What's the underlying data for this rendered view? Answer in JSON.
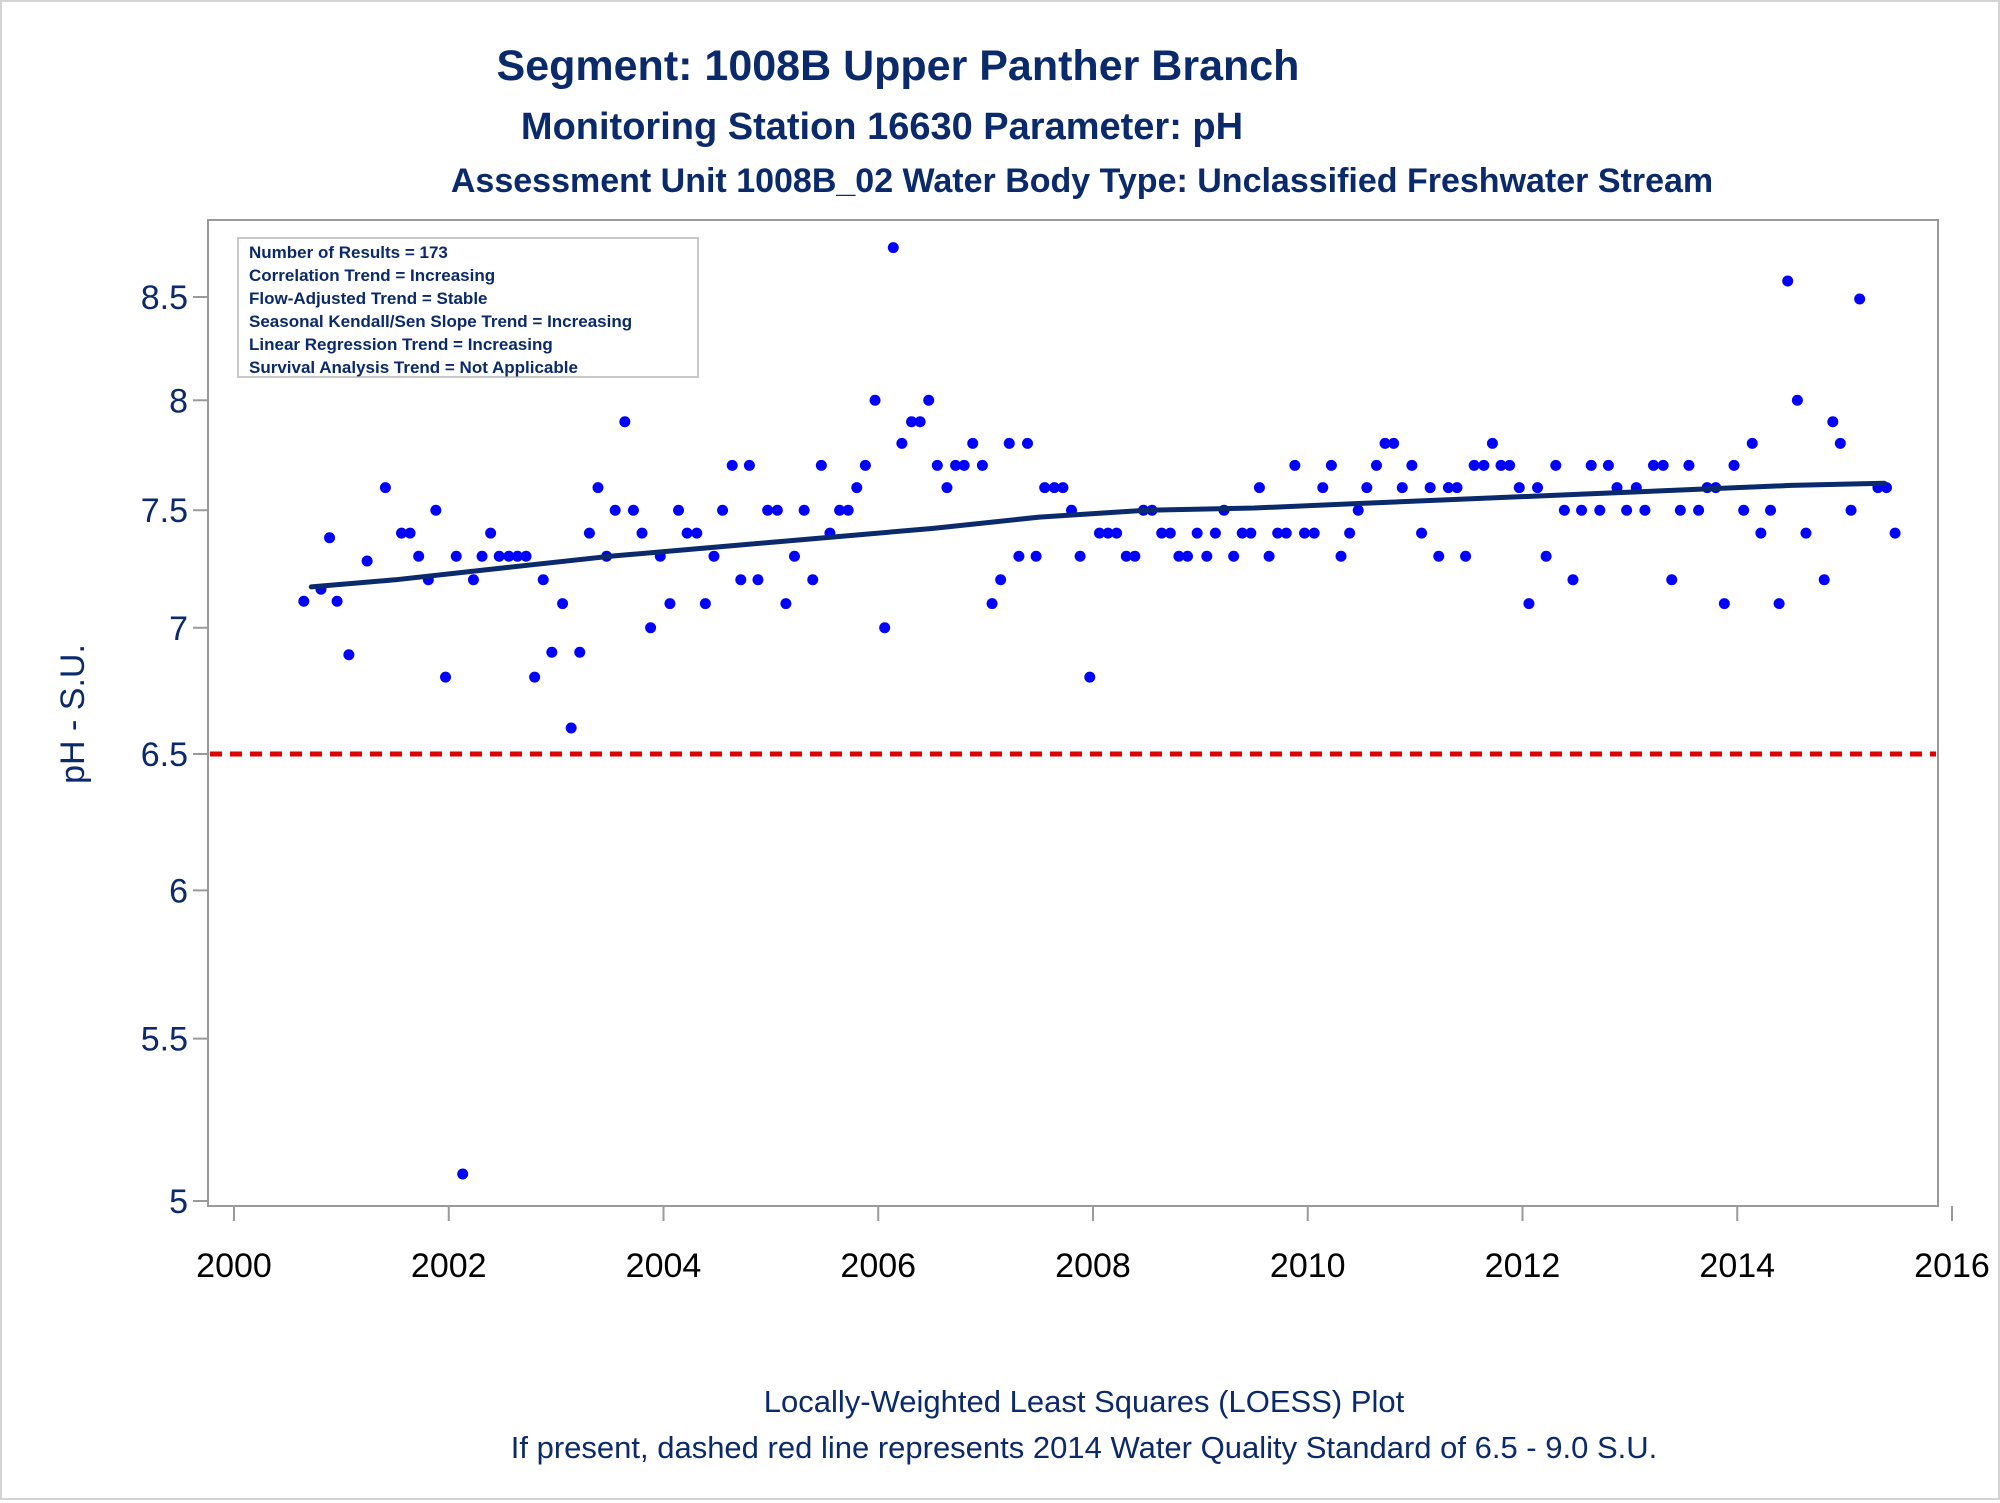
{
  "titles": {
    "line1": "Segment: 1008B  Upper Panther Branch",
    "line2": "Monitoring Station 16630 Parameter: pH",
    "line3": "Assessment Unit 1008B_02   Water Body Type: Unclassified Freshwater Stream"
  },
  "footnotes": {
    "line1": "Locally-Weighted Least Squares (LOESS) Plot",
    "line2": "If present, dashed red line represents 2014 Water Quality Standard of 6.5 - 9.0 S.U."
  },
  "stats_box": [
    "Number of Results = 173",
    "Correlation Trend = Increasing",
    "Flow-Adjusted Trend = Stable",
    "Seasonal Kendall/Sen Slope Trend = Increasing",
    "Linear Regression Trend = Increasing",
    "Survival Analysis Trend = Not Applicable"
  ],
  "colors": {
    "title": "#0b2a6b",
    "points": "#0000ff",
    "loess": "#0b2a6b",
    "standard_line": "#e00000",
    "axis": "#9a9a9a"
  },
  "chart_data": {
    "type": "scatter",
    "xlabel": "",
    "ylabel": "pH - S.U.",
    "xlim": [
      2000,
      2016
    ],
    "ylim": [
      4.96,
      8.78
    ],
    "y_scale": "log",
    "x_ticks": [
      2000,
      2002,
      2004,
      2006,
      2008,
      2010,
      2012,
      2014,
      2016
    ],
    "y_ticks": [
      5,
      5.5,
      6,
      6.5,
      7,
      7.5,
      8,
      8.5
    ],
    "grid": false,
    "reference_line": {
      "y": 6.5,
      "style": "dashed"
    },
    "series": [
      {
        "name": "",
        "type": "scatter",
        "points": [
          [
            2000.65,
            7.11
          ],
          [
            2000.81,
            7.16
          ],
          [
            2000.89,
            7.38
          ],
          [
            2000.96,
            7.11
          ],
          [
            2001.07,
            6.89
          ],
          [
            2001.24,
            7.28
          ],
          [
            2001.41,
            7.6
          ],
          [
            2001.56,
            7.4
          ],
          [
            2001.64,
            7.4
          ],
          [
            2001.72,
            7.3
          ],
          [
            2001.81,
            7.2
          ],
          [
            2001.88,
            7.5
          ],
          [
            2001.97,
            6.8
          ],
          [
            2002.07,
            7.3
          ],
          [
            2002.13,
            5.08
          ],
          [
            2002.23,
            7.2
          ],
          [
            2002.31,
            7.3
          ],
          [
            2002.39,
            7.4
          ],
          [
            2002.47,
            7.3
          ],
          [
            2002.56,
            7.3
          ],
          [
            2002.64,
            7.3
          ],
          [
            2002.72,
            7.3
          ],
          [
            2002.8,
            6.8
          ],
          [
            2002.88,
            7.2
          ],
          [
            2002.96,
            6.9
          ],
          [
            2003.06,
            7.1
          ],
          [
            2003.14,
            6.6
          ],
          [
            2003.22,
            6.9
          ],
          [
            2003.31,
            7.4
          ],
          [
            2003.39,
            7.6
          ],
          [
            2003.47,
            7.3
          ],
          [
            2003.55,
            7.5
          ],
          [
            2003.64,
            7.9
          ],
          [
            2003.72,
            7.5
          ],
          [
            2003.8,
            7.4
          ],
          [
            2003.88,
            7.0
          ],
          [
            2003.97,
            7.3
          ],
          [
            2004.06,
            7.1
          ],
          [
            2004.14,
            7.5
          ],
          [
            2004.22,
            7.4
          ],
          [
            2004.31,
            7.4
          ],
          [
            2004.39,
            7.1
          ],
          [
            2004.47,
            7.3
          ],
          [
            2004.55,
            7.5
          ],
          [
            2004.64,
            7.7
          ],
          [
            2004.72,
            7.2
          ],
          [
            2004.8,
            7.7
          ],
          [
            2004.88,
            7.2
          ],
          [
            2004.97,
            7.5
          ],
          [
            2005.06,
            7.5
          ],
          [
            2005.14,
            7.1
          ],
          [
            2005.22,
            7.3
          ],
          [
            2005.31,
            7.5
          ],
          [
            2005.39,
            7.2
          ],
          [
            2005.47,
            7.7
          ],
          [
            2005.55,
            7.4
          ],
          [
            2005.64,
            7.5
          ],
          [
            2005.72,
            7.5
          ],
          [
            2005.8,
            7.6
          ],
          [
            2005.88,
            7.7
          ],
          [
            2005.97,
            8.0
          ],
          [
            2006.06,
            7.0
          ],
          [
            2006.14,
            8.75
          ],
          [
            2006.22,
            7.8
          ],
          [
            2006.31,
            7.9
          ],
          [
            2006.39,
            7.9
          ],
          [
            2006.47,
            8.0
          ],
          [
            2006.55,
            7.7
          ],
          [
            2006.64,
            7.6
          ],
          [
            2006.72,
            7.7
          ],
          [
            2006.8,
            7.7
          ],
          [
            2006.88,
            7.8
          ],
          [
            2006.97,
            7.7
          ],
          [
            2007.06,
            7.1
          ],
          [
            2007.14,
            7.2
          ],
          [
            2007.22,
            7.8
          ],
          [
            2007.31,
            7.3
          ],
          [
            2007.39,
            7.8
          ],
          [
            2007.47,
            7.3
          ],
          [
            2007.55,
            7.6
          ],
          [
            2007.64,
            7.6
          ],
          [
            2007.72,
            7.6
          ],
          [
            2007.8,
            7.5
          ],
          [
            2007.88,
            7.3
          ],
          [
            2007.97,
            6.8
          ],
          [
            2008.06,
            7.4
          ],
          [
            2008.14,
            7.4
          ],
          [
            2008.22,
            7.4
          ],
          [
            2008.31,
            7.3
          ],
          [
            2008.39,
            7.3
          ],
          [
            2008.47,
            7.5
          ],
          [
            2008.55,
            7.5
          ],
          [
            2008.64,
            7.4
          ],
          [
            2008.72,
            7.4
          ],
          [
            2008.8,
            7.3
          ],
          [
            2008.88,
            7.3
          ],
          [
            2008.97,
            7.4
          ],
          [
            2009.06,
            7.3
          ],
          [
            2009.14,
            7.4
          ],
          [
            2009.22,
            7.5
          ],
          [
            2009.31,
            7.3
          ],
          [
            2009.39,
            7.4
          ],
          [
            2009.47,
            7.4
          ],
          [
            2009.55,
            7.6
          ],
          [
            2009.64,
            7.3
          ],
          [
            2009.72,
            7.4
          ],
          [
            2009.8,
            7.4
          ],
          [
            2009.88,
            7.7
          ],
          [
            2009.97,
            7.4
          ],
          [
            2010.06,
            7.4
          ],
          [
            2010.14,
            7.6
          ],
          [
            2010.22,
            7.7
          ],
          [
            2010.31,
            7.3
          ],
          [
            2010.39,
            7.4
          ],
          [
            2010.47,
            7.5
          ],
          [
            2010.55,
            7.6
          ],
          [
            2010.64,
            7.7
          ],
          [
            2010.72,
            7.8
          ],
          [
            2010.8,
            7.8
          ],
          [
            2010.88,
            7.6
          ],
          [
            2010.97,
            7.7
          ],
          [
            2011.06,
            7.4
          ],
          [
            2011.14,
            7.6
          ],
          [
            2011.22,
            7.3
          ],
          [
            2011.31,
            7.6
          ],
          [
            2011.39,
            7.6
          ],
          [
            2011.47,
            7.3
          ],
          [
            2011.55,
            7.7
          ],
          [
            2011.64,
            7.7
          ],
          [
            2011.72,
            7.8
          ],
          [
            2011.8,
            7.7
          ],
          [
            2011.88,
            7.7
          ],
          [
            2011.97,
            7.6
          ],
          [
            2012.06,
            7.1
          ],
          [
            2012.14,
            7.6
          ],
          [
            2012.22,
            7.3
          ],
          [
            2012.31,
            7.7
          ],
          [
            2012.39,
            7.5
          ],
          [
            2012.47,
            7.2
          ],
          [
            2012.55,
            7.5
          ],
          [
            2012.64,
            7.7
          ],
          [
            2012.72,
            7.5
          ],
          [
            2012.8,
            7.7
          ],
          [
            2012.88,
            7.6
          ],
          [
            2012.97,
            7.5
          ],
          [
            2013.06,
            7.6
          ],
          [
            2013.14,
            7.5
          ],
          [
            2013.22,
            7.7
          ],
          [
            2013.31,
            7.7
          ],
          [
            2013.39,
            7.2
          ],
          [
            2013.47,
            7.5
          ],
          [
            2013.55,
            7.7
          ],
          [
            2013.64,
            7.5
          ],
          [
            2013.72,
            7.6
          ],
          [
            2013.8,
            7.6
          ],
          [
            2013.88,
            7.1
          ],
          [
            2013.97,
            7.7
          ],
          [
            2014.06,
            7.5
          ],
          [
            2014.14,
            7.8
          ],
          [
            2014.22,
            7.4
          ],
          [
            2014.31,
            7.5
          ],
          [
            2014.39,
            7.1
          ],
          [
            2014.47,
            8.58
          ],
          [
            2014.56,
            8.0
          ],
          [
            2014.64,
            7.4
          ],
          [
            2014.81,
            7.2
          ],
          [
            2014.89,
            7.9
          ],
          [
            2014.96,
            7.8
          ],
          [
            2015.06,
            7.5
          ],
          [
            2015.14,
            8.49
          ],
          [
            2015.31,
            7.6
          ],
          [
            2015.39,
            7.6
          ],
          [
            2015.47,
            7.4
          ]
        ]
      },
      {
        "name": "",
        "type": "line",
        "points": [
          [
            2000.72,
            7.17
          ],
          [
            2001.5,
            7.2
          ],
          [
            2002.5,
            7.25
          ],
          [
            2003.5,
            7.3
          ],
          [
            2004.5,
            7.34
          ],
          [
            2005.5,
            7.38
          ],
          [
            2006.5,
            7.42
          ],
          [
            2007.5,
            7.47
          ],
          [
            2008.5,
            7.5
          ],
          [
            2009.5,
            7.51
          ],
          [
            2010.5,
            7.53
          ],
          [
            2011.5,
            7.55
          ],
          [
            2012.5,
            7.57
          ],
          [
            2013.5,
            7.59
          ],
          [
            2014.5,
            7.61
          ],
          [
            2015.37,
            7.62
          ]
        ]
      }
    ]
  }
}
